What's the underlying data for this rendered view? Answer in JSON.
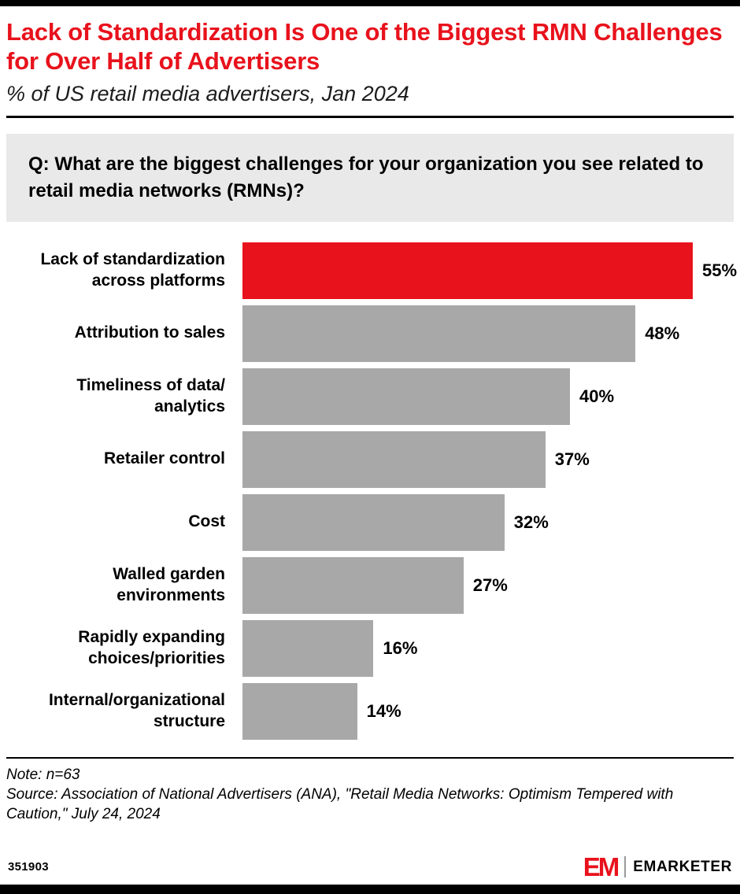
{
  "header": {
    "title": "Lack of Standardization Is One of the Biggest RMN Challenges for Over Half of Advertisers",
    "subtitle": "% of US retail media advertisers, Jan 2024"
  },
  "question": "Q: What are the biggest challenges for your organization you see related to retail media networks (RMNs)?",
  "chart_data": {
    "type": "bar",
    "orientation": "horizontal",
    "categories": [
      "Lack of standardization across platforms",
      "Attribution to sales",
      "Timeliness of data/ analytics",
      "Retailer control",
      "Cost",
      "Walled garden environments",
      "Rapidly expanding choices/priorities",
      "Internal/organizational structure"
    ],
    "values": [
      55,
      48,
      40,
      37,
      32,
      27,
      16,
      14
    ],
    "value_labels": [
      "55%",
      "48%",
      "40%",
      "37%",
      "32%",
      "27%",
      "16%",
      "14%"
    ],
    "highlight_index": 0,
    "colors": {
      "highlight": "#e8121c",
      "default": "#a8a8a8"
    },
    "xlim": [
      0,
      60
    ],
    "grid": false,
    "legend": "none"
  },
  "footnote": {
    "note": "Note: n=63",
    "source": "Source: Association of National Advertisers (ANA), \"Retail Media Networks: Optimism Tempered with Caution,\" July 24, 2024"
  },
  "footer": {
    "chart_id": "351903",
    "logo_text": "EM",
    "brand": "EMARKETER"
  }
}
